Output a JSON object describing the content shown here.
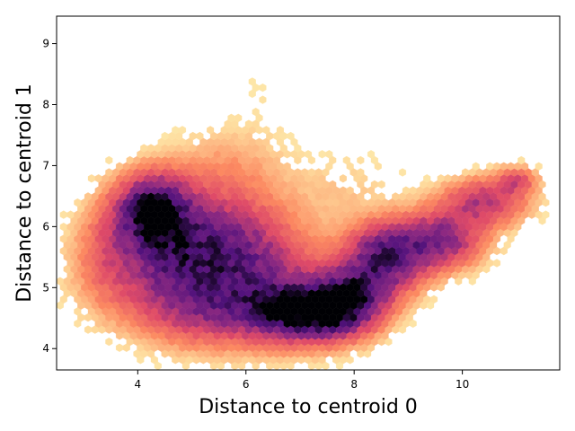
{
  "chart_data": {
    "type": "heatmap",
    "subtype": "hexbin",
    "title": "",
    "xlabel": "Distance to centroid 0",
    "ylabel": "Distance to centroid 1",
    "xlim": [
      2.5,
      11.8
    ],
    "ylim": [
      3.65,
      9.45
    ],
    "xticks": [
      4,
      6,
      8,
      10
    ],
    "yticks": [
      4,
      5,
      6,
      7,
      8,
      9
    ],
    "colormap": "magma_r",
    "colors": {
      "low": "#fcfdbf",
      "mid_low": "#fc8961",
      "mid": "#b73779",
      "mid_high": "#51127c",
      "high": "#000004"
    },
    "hexbin_grid": {
      "nx": 72,
      "ny": 48
    },
    "density_clusters": [
      {
        "x": 4.3,
        "y": 6.25,
        "sx": 0.45,
        "sy": 0.38,
        "w": 1.0
      },
      {
        "x": 4.6,
        "y": 5.4,
        "sx": 0.9,
        "sy": 0.6,
        "w": 0.55
      },
      {
        "x": 5.6,
        "y": 5.8,
        "sx": 0.8,
        "sy": 0.5,
        "w": 0.4
      },
      {
        "x": 6.8,
        "y": 4.6,
        "sx": 0.55,
        "sy": 0.3,
        "w": 0.7
      },
      {
        "x": 7.6,
        "y": 4.6,
        "sx": 0.5,
        "sy": 0.3,
        "w": 0.75
      },
      {
        "x": 8.0,
        "y": 4.9,
        "sx": 0.45,
        "sy": 0.3,
        "w": 0.65
      },
      {
        "x": 8.6,
        "y": 5.5,
        "sx": 0.5,
        "sy": 0.35,
        "w": 0.8
      },
      {
        "x": 9.6,
        "y": 5.8,
        "sx": 0.5,
        "sy": 0.3,
        "w": 0.6
      },
      {
        "x": 10.4,
        "y": 6.4,
        "sx": 0.5,
        "sy": 0.25,
        "w": 0.45
      },
      {
        "x": 11.0,
        "y": 6.75,
        "sx": 0.25,
        "sy": 0.15,
        "w": 0.3
      },
      {
        "x": 6.2,
        "y": 5.0,
        "sx": 0.9,
        "sy": 0.55,
        "w": 0.45
      },
      {
        "x": 5.2,
        "y": 4.6,
        "sx": 0.7,
        "sy": 0.35,
        "w": 0.25
      },
      {
        "x": 5.6,
        "y": 6.9,
        "sx": 0.7,
        "sy": 0.45,
        "w": 0.12
      },
      {
        "x": 6.3,
        "y": 8.0,
        "sx": 0.45,
        "sy": 0.7,
        "w": 0.02
      },
      {
        "x": 7.8,
        "y": 6.6,
        "sx": 0.8,
        "sy": 0.4,
        "w": 0.06
      },
      {
        "x": 3.4,
        "y": 5.6,
        "sx": 0.3,
        "sy": 0.5,
        "w": 0.12
      }
    ]
  }
}
